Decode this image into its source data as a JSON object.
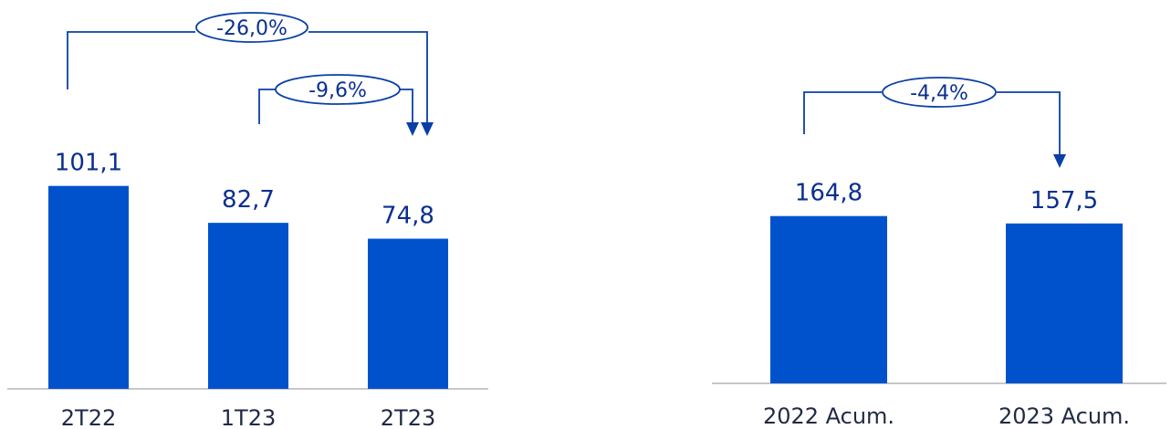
{
  "chart_data": [
    {
      "type": "bar",
      "categories": [
        "2T22",
        "1T23",
        "2T23"
      ],
      "values": [
        101.1,
        82.7,
        74.8
      ],
      "value_labels": [
        "101,1",
        "82,7",
        "74,8"
      ],
      "ylim": [
        0,
        110
      ],
      "grid": false,
      "annotations": [
        {
          "label": "-26,0%",
          "from": "2T22",
          "to": "2T23"
        },
        {
          "label": "-9,6%",
          "from": "1T23",
          "to": "2T23"
        }
      ]
    },
    {
      "type": "bar",
      "categories": [
        "2022 Acum.",
        "2023 Acum."
      ],
      "values": [
        164.8,
        157.5
      ],
      "value_labels": [
        "164,8",
        "157,5"
      ],
      "ylim": [
        0,
        180
      ],
      "grid": false,
      "annotations": [
        {
          "label": "-4,4%",
          "from": "2022 Acum.",
          "to": "2023 Acum."
        }
      ]
    }
  ],
  "colors": {
    "bar": "#0052cc",
    "connector": "#0b3fa8",
    "text": "#0a2f8f",
    "axis": "#c7c7c7"
  }
}
